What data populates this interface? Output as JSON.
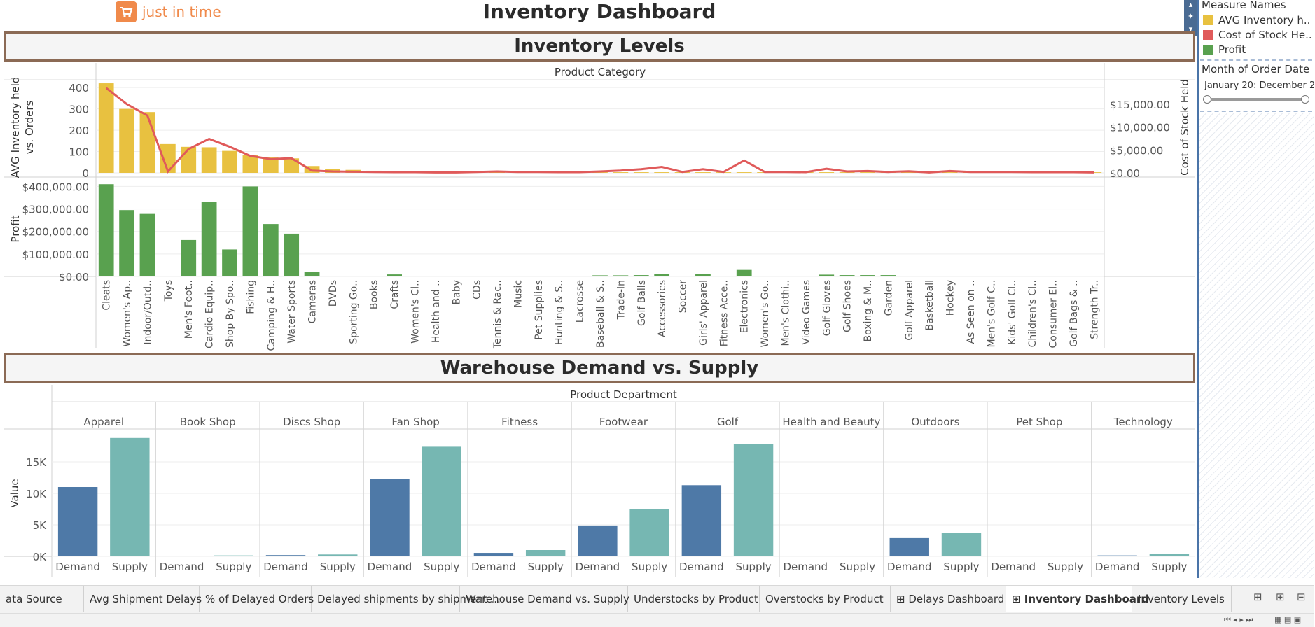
{
  "app": {
    "logo_text": "just in time"
  },
  "dashboard": {
    "title": "Inventory Dashboard"
  },
  "sections": {
    "inventory_levels": "Inventory Levels",
    "warehouse": "Warehouse Demand vs. Supply"
  },
  "sidebar": {
    "measure_names_title": "Measure Names",
    "legend": [
      {
        "label": "AVG Inventory h..",
        "color": "#e8c140"
      },
      {
        "label": "Cost of Stock He..",
        "color": "#e05a5a"
      },
      {
        "label": "Profit",
        "color": "#59a14f"
      }
    ],
    "month_filter_title": "Month of Order Date",
    "month_filter_range": "January 20: December 2",
    "slider_start_pct": 0,
    "slider_end_pct": 100
  },
  "tabs": [
    {
      "label": "ata Source",
      "active": false
    },
    {
      "label": "Avg Shipment Delays",
      "active": false
    },
    {
      "label": "% of Delayed Orders",
      "active": false
    },
    {
      "label": "Delayed shipments by shipment ...",
      "active": false
    },
    {
      "label": "Warehouse Demand vs. Supply",
      "active": false
    },
    {
      "label": "Understocks by Product",
      "active": false
    },
    {
      "label": "Overstocks by Product",
      "active": false
    },
    {
      "label": "⊞ Delays Dashboard",
      "active": false
    },
    {
      "label": "⊞ Inventory Dashboard",
      "active": true
    },
    {
      "label": "Inventory Levels",
      "active": false
    }
  ],
  "chart_data": [
    {
      "type": "bar",
      "title": "Product Category",
      "ylabel": "AVG Inventory held vs. Orders",
      "y2label": "Cost of Stock Held",
      "ylim": [
        0,
        430
      ],
      "y2lim": [
        0,
        20000
      ],
      "yticks": [
        "400",
        "300",
        "200",
        "100",
        "0"
      ],
      "y2ticks": [
        "$15,000.00",
        "$10,000.00",
        "$5,000.00",
        "$0.00"
      ],
      "categories": [
        "Cleats",
        "Women's Ap..",
        "Indoor/Outd..",
        "Toys",
        "Men's Foot..",
        "Cardio Equip..",
        "Shop By Spo..",
        "Fishing",
        "Camping & H..",
        "Water Sports",
        "Cameras",
        "DVDs",
        "Sporting Go..",
        "Books",
        "Crafts",
        "Women's Cl..",
        "Health and ..",
        "Baby",
        "CDs",
        "Tennis & Rac..",
        "Music",
        "Pet Supplies",
        "Hunting & S..",
        "Lacrosse",
        "Baseball & S..",
        "Trade-In",
        "Golf Balls",
        "Accessories",
        "Soccer",
        "Girls' Apparel",
        "Fitness Acce..",
        "Electronics",
        "Women's Go..",
        "Men's Clothi..",
        "Video Games",
        "Golf Gloves",
        "Golf Shoes",
        "Boxing & M..",
        "Garden",
        "Golf Apparel",
        "Basketball",
        "Hockey",
        "As Seen on ..",
        "Men's Golf C..",
        "Kids' Golf Cl..",
        "Children's Cl..",
        "Consumer El..",
        "Golf Bags & ..",
        "Strength Tr.."
      ],
      "series": [
        {
          "name": "AVG Inventory held vs. Orders",
          "color": "#e8c140",
          "values": [
            420,
            300,
            285,
            135,
            122,
            120,
            103,
            82,
            72,
            68,
            32,
            18,
            14,
            10,
            8,
            7,
            4,
            3,
            3,
            3,
            3,
            3,
            3,
            3,
            3,
            3,
            3,
            3,
            3,
            3,
            3,
            3,
            3,
            3,
            3,
            3,
            3,
            3,
            3,
            3,
            3,
            3,
            3,
            3,
            3,
            3,
            3,
            3,
            3
          ]
        },
        {
          "name": "Cost of Stock Held",
          "color": "#e05a5a",
          "values": [
            18500,
            15000,
            12500,
            300,
            5200,
            7400,
            5700,
            3700,
            3000,
            3200,
            500,
            300,
            250,
            200,
            150,
            150,
            100,
            100,
            200,
            300,
            200,
            200,
            150,
            150,
            300,
            500,
            800,
            1300,
            200,
            800,
            200,
            2700,
            200,
            200,
            150,
            900,
            300,
            400,
            200,
            350,
            100,
            400,
            200,
            200,
            200,
            150,
            150,
            150,
            100
          ]
        }
      ]
    },
    {
      "type": "bar",
      "ylabel": "Profit",
      "ylim": [
        0,
        420000
      ],
      "yticks": [
        "$400,000.00",
        "$300,000.00",
        "$200,000.00",
        "$100,000.00",
        "$0.00"
      ],
      "series": [
        {
          "name": "Profit",
          "color": "#59a14f",
          "values": [
            410000,
            295000,
            278000,
            0,
            162000,
            330000,
            120000,
            400000,
            233000,
            190000,
            20000,
            3000,
            2000,
            0,
            9000,
            3000,
            0,
            0,
            0,
            3000,
            0,
            0,
            3000,
            3000,
            5000,
            5000,
            6000,
            12000,
            3000,
            10000,
            3000,
            29000,
            3000,
            0,
            0,
            8000,
            6000,
            6000,
            6000,
            3000,
            0,
            3000,
            0,
            2000,
            3000,
            0,
            3000,
            0,
            0
          ]
        }
      ]
    },
    {
      "type": "bar",
      "title": "Product Department",
      "ylabel": "Value",
      "ylim": [
        0,
        20000
      ],
      "yticks": [
        "15K",
        "10K",
        "5K",
        "0K"
      ],
      "subcategories": [
        "Demand",
        "Supply"
      ],
      "departments": [
        {
          "name": "Apparel",
          "demand": 11000,
          "supply": 18800
        },
        {
          "name": "Book Shop",
          "demand": 0,
          "supply": 150
        },
        {
          "name": "Discs Shop",
          "demand": 200,
          "supply": 300
        },
        {
          "name": "Fan Shop",
          "demand": 12300,
          "supply": 17400
        },
        {
          "name": "Fitness",
          "demand": 550,
          "supply": 1000
        },
        {
          "name": "Footwear",
          "demand": 4900,
          "supply": 7500
        },
        {
          "name": "Golf",
          "demand": 11300,
          "supply": 17800
        },
        {
          "name": "Health and Beauty",
          "demand": 0,
          "supply": 0
        },
        {
          "name": "Outdoors",
          "demand": 2900,
          "supply": 3700
        },
        {
          "name": "Pet Shop",
          "demand": 0,
          "supply": 0
        },
        {
          "name": "Technology",
          "demand": 150,
          "supply": 350
        }
      ],
      "colors": {
        "demand": "#4e79a7",
        "supply": "#76b7b2"
      }
    }
  ]
}
